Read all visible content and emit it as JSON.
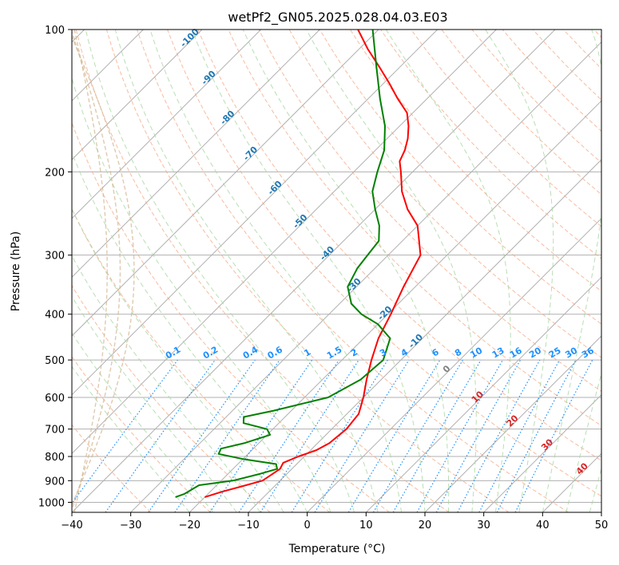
{
  "chart_data": {
    "type": "line",
    "subtype": "skew-t log-p diagram",
    "title": "wetPf2_GN05.2025.028.04.03.E03",
    "xlabel": "Temperature (°C)",
    "ylabel": "Pressure (hPa)",
    "xlim": [
      -40,
      50
    ],
    "ylim": [
      1050,
      100
    ],
    "y_scale": "log",
    "x_ticks": [
      -40,
      -30,
      -20,
      -10,
      0,
      10,
      20,
      30,
      40,
      50
    ],
    "y_ticks": [
      100,
      200,
      300,
      400,
      500,
      600,
      700,
      800,
      900,
      1000
    ],
    "grid": true,
    "series": [
      {
        "role": "temperature",
        "color": "#ff0000",
        "points": [
          {
            "p": 975,
            "t": -20.0
          },
          {
            "p": 950,
            "t": -18.0
          },
          {
            "p": 925,
            "t": -15.5
          },
          {
            "p": 900,
            "t": -13.0
          },
          {
            "p": 875,
            "t": -12.5
          },
          {
            "p": 850,
            "t": -12.0
          },
          {
            "p": 825,
            "t": -12.5
          },
          {
            "p": 800,
            "t": -11.0
          },
          {
            "p": 775,
            "t": -9.0
          },
          {
            "p": 750,
            "t": -8.0
          },
          {
            "p": 700,
            "t": -7.5
          },
          {
            "p": 650,
            "t": -8.0
          },
          {
            "p": 600,
            "t": -10.0
          },
          {
            "p": 550,
            "t": -12.5
          },
          {
            "p": 500,
            "t": -15.0
          },
          {
            "p": 450,
            "t": -17.5
          },
          {
            "p": 400,
            "t": -19.5
          },
          {
            "p": 350,
            "t": -22.0
          },
          {
            "p": 300,
            "t": -24.5
          },
          {
            "p": 260,
            "t": -30.0
          },
          {
            "p": 240,
            "t": -34.5
          },
          {
            "p": 220,
            "t": -38.5
          },
          {
            "p": 200,
            "t": -42.0
          },
          {
            "p": 190,
            "t": -44.0
          },
          {
            "p": 180,
            "t": -45.0
          },
          {
            "p": 170,
            "t": -46.5
          },
          {
            "p": 160,
            "t": -48.5
          },
          {
            "p": 150,
            "t": -51.0
          },
          {
            "p": 140,
            "t": -55.0
          },
          {
            "p": 130,
            "t": -59.0
          },
          {
            "p": 120,
            "t": -63.5
          },
          {
            "p": 110,
            "t": -68.5
          },
          {
            "p": 100,
            "t": -73.5
          }
        ]
      },
      {
        "role": "dewpoint",
        "color": "#008000",
        "points": [
          {
            "p": 975,
            "t": -25.0
          },
          {
            "p": 960,
            "t": -24.0
          },
          {
            "p": 940,
            "t": -23.5
          },
          {
            "p": 920,
            "t": -23.0
          },
          {
            "p": 900,
            "t": -18.0
          },
          {
            "p": 870,
            "t": -14.5
          },
          {
            "p": 850,
            "t": -12.5
          },
          {
            "p": 830,
            "t": -13.5
          },
          {
            "p": 810,
            "t": -20.0
          },
          {
            "p": 790,
            "t": -25.0
          },
          {
            "p": 770,
            "t": -25.5
          },
          {
            "p": 750,
            "t": -22.5
          },
          {
            "p": 720,
            "t": -19.5
          },
          {
            "p": 700,
            "t": -21.0
          },
          {
            "p": 680,
            "t": -26.0
          },
          {
            "p": 660,
            "t": -27.0
          },
          {
            "p": 640,
            "t": -23.0
          },
          {
            "p": 600,
            "t": -16.0
          },
          {
            "p": 550,
            "t": -13.5
          },
          {
            "p": 500,
            "t": -13.0
          },
          {
            "p": 450,
            "t": -15.5
          },
          {
            "p": 420,
            "t": -20.0
          },
          {
            "p": 400,
            "t": -24.5
          },
          {
            "p": 380,
            "t": -28.0
          },
          {
            "p": 350,
            "t": -31.5
          },
          {
            "p": 320,
            "t": -33.0
          },
          {
            "p": 300,
            "t": -33.5
          },
          {
            "p": 280,
            "t": -34.0
          },
          {
            "p": 260,
            "t": -36.5
          },
          {
            "p": 240,
            "t": -40.0
          },
          {
            "p": 220,
            "t": -43.5
          },
          {
            "p": 200,
            "t": -46.0
          },
          {
            "p": 180,
            "t": -48.5
          },
          {
            "p": 160,
            "t": -52.5
          },
          {
            "p": 140,
            "t": -58.0
          },
          {
            "p": 120,
            "t": -64.0
          },
          {
            "p": 100,
            "t": -71.0
          }
        ]
      }
    ],
    "isotherm_labels": [
      -100,
      -90,
      -80,
      -70,
      -60,
      -50,
      -40,
      -30,
      -20,
      -10,
      0,
      10,
      20,
      30,
      40
    ],
    "mixing_ratio_labels": [
      "0.1",
      "0.2",
      "0.4",
      "0.6",
      "1",
      "1.5",
      "2",
      "3",
      "4",
      "6",
      "8",
      "10",
      "13",
      "16",
      "20",
      "25",
      "30",
      "36"
    ],
    "mixing_ratio_values": [
      0.1,
      0.2,
      0.4,
      0.6,
      1,
      1.5,
      2,
      3,
      4,
      6,
      8,
      10,
      13,
      16,
      20,
      25,
      30,
      36
    ],
    "colors": {
      "temperature": "#ff0000",
      "dewpoint": "#008000",
      "isotherm_cold_label": "#1f77b4",
      "isotherm_zero_label": "#808080",
      "isotherm_warm_label": "#d62728",
      "mixing_ratio": "#1e90ff",
      "dry_adiabat": "#f4a582",
      "moist_adiabat": "#a6d7a0",
      "isohume": "#d2b48c",
      "grid": "#b0b0b0"
    }
  }
}
